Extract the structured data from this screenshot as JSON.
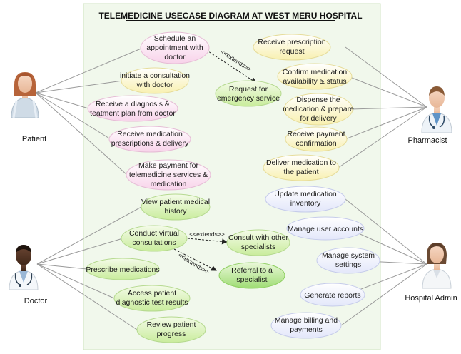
{
  "title": "TELEMEDICINE USECASE DIAGRAM AT WEST MERU HOSPITAL",
  "actors": {
    "patient": "Patient",
    "pharmacist": "Pharmacist",
    "doctor": "Doctor",
    "hospital_admin": "Hospital Admin"
  },
  "use_cases": {
    "schedule_appointment": [
      "Schedule an",
      "appointment with",
      "doctor"
    ],
    "initiate_consultation": [
      "initiate a consultation",
      "with doctor"
    ],
    "receive_diagnosis": [
      "Receive a diagnosis &",
      "teatment plan from doctor"
    ],
    "receive_medication": [
      "Receive medication",
      "prescriptions & delivery"
    ],
    "make_payment": [
      "Make payment for",
      "telemedicine services &",
      "medication"
    ],
    "request_emergency": [
      "Request for",
      "emergency service"
    ],
    "receive_prescription_request": [
      "Receive prescription",
      "request"
    ],
    "confirm_availability": [
      "Confirm medication",
      "availability & status"
    ],
    "dispense_medication": [
      "Dispense the",
      "medication & prepare",
      "for delivery"
    ],
    "receive_payment_confirmation": [
      "Receive payment",
      "confirmation"
    ],
    "deliver_medication": [
      "Deliver medication to",
      "the patient"
    ],
    "view_history": [
      "View patient medical",
      "history"
    ],
    "conduct_consultations": [
      "Conduct virtual",
      "consultations"
    ],
    "consult_specialists": [
      "Consult with other",
      "specialists"
    ],
    "referral_specialist": [
      "Referral to a",
      "specialist"
    ],
    "prescribe_medications": [
      "Prescribe medications"
    ],
    "access_test_results": [
      "Access patient",
      "diagnostic test results"
    ],
    "review_progress": [
      "Review patient",
      "progress"
    ],
    "update_inventory": [
      "Update medication",
      "inventory"
    ],
    "manage_accounts": [
      "Manage user accounts"
    ],
    "manage_settings": [
      "Manage system",
      "settings"
    ],
    "generate_reports": [
      "Generate reports"
    ],
    "manage_billing": [
      "Manage billing and",
      "payments"
    ]
  },
  "extends_label": "<<extends>>",
  "colors": {
    "pink": "#fbe0ef",
    "yellow": "#fbf6c8",
    "green": "#dff3c0",
    "green_strong": "#b9e89a",
    "lavender": "#eceefb",
    "system_bg": "#f1f8ec",
    "line": "#9a9a9a"
  }
}
